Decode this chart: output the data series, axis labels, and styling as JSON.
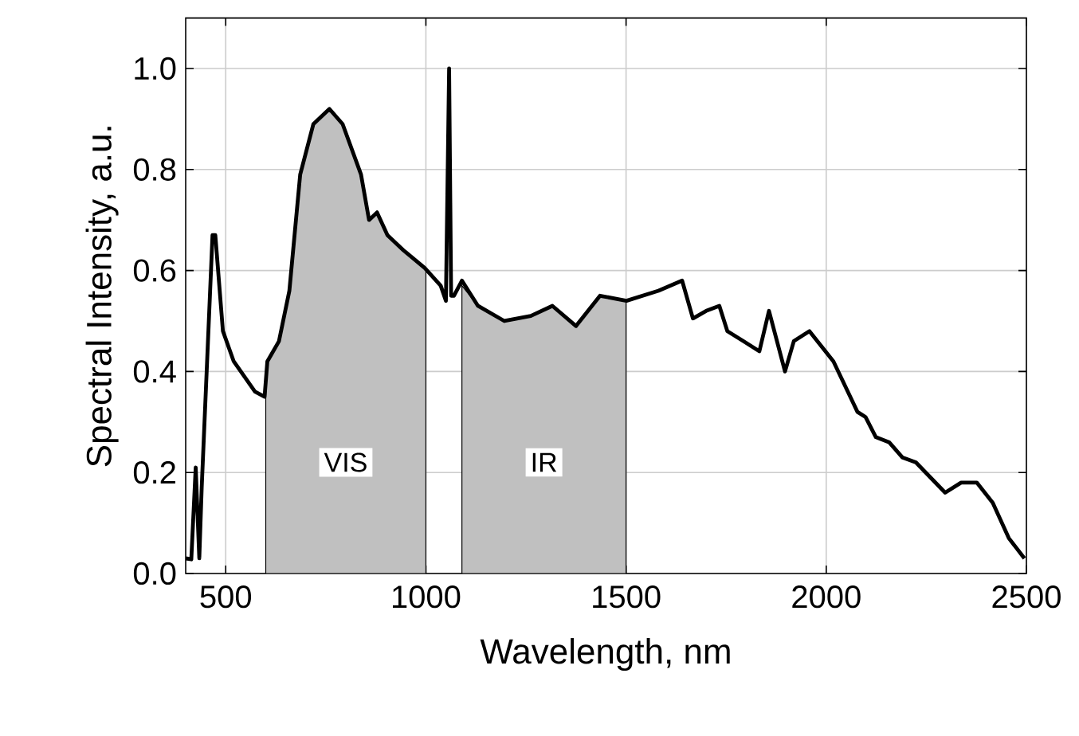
{
  "chart_data": {
    "type": "line",
    "xlabel": "Wavelength, nm",
    "ylabel": "Spectral Intensity, a.u.",
    "xlim": [
      400,
      2500
    ],
    "ylim": [
      0,
      1.1
    ],
    "xticks": [
      500,
      1000,
      1500,
      2000,
      2500
    ],
    "yticks": [
      {
        "value": 0,
        "label": "0.0"
      },
      {
        "value": 0.2,
        "label": "0.2"
      },
      {
        "value": 0.4,
        "label": "0.4"
      },
      {
        "value": 0.6,
        "label": "0.6"
      },
      {
        "value": 0.8,
        "label": "0.8"
      },
      {
        "value": 1.0,
        "label": "1.0"
      }
    ],
    "grid": true,
    "series": [
      {
        "type": "area",
        "name": "VIS",
        "color": "#c0c0c0",
        "x": [
          600,
          604,
          633,
          659,
          686,
          719,
          759,
          792,
          838,
          858,
          878,
          904,
          944,
          997,
          1000
        ],
        "values": [
          0.35,
          0.42,
          0.46,
          0.56,
          0.79,
          0.89,
          0.92,
          0.89,
          0.79,
          0.7,
          0.715,
          0.67,
          0.64,
          0.605,
          0.6
        ]
      },
      {
        "type": "area",
        "name": "IR",
        "color": "#c0c0c0",
        "x": [
          1090,
          1130,
          1196,
          1262,
          1316,
          1375,
          1435,
          1500
        ],
        "values": [
          0.57,
          0.53,
          0.5,
          0.51,
          0.53,
          0.49,
          0.55,
          0.54
        ]
      },
      {
        "color": "#000000",
        "x": [
          400,
          414,
          425,
          434,
          440,
          467,
          474,
          493,
          520,
          573,
          597,
          604,
          633,
          659,
          686,
          719,
          759,
          792,
          838,
          858,
          878,
          904,
          944,
          997,
          1037,
          1050,
          1058,
          1063,
          1070,
          1090,
          1130,
          1196,
          1262,
          1316,
          1375,
          1435,
          1501,
          1581,
          1640,
          1667,
          1700,
          1733,
          1753,
          1793,
          1833,
          1857,
          1897,
          1919,
          1958,
          2018,
          2078,
          2098,
          2124,
          2157,
          2190,
          2224,
          2297,
          2337,
          2376,
          2416,
          2456,
          2495
        ],
        "values": [
          0.03,
          0.028,
          0.21,
          0.03,
          0.17,
          0.67,
          0.67,
          0.48,
          0.42,
          0.36,
          0.35,
          0.42,
          0.46,
          0.56,
          0.79,
          0.89,
          0.92,
          0.89,
          0.79,
          0.7,
          0.715,
          0.67,
          0.64,
          0.605,
          0.57,
          0.54,
          1.0,
          0.55,
          0.55,
          0.58,
          0.53,
          0.5,
          0.51,
          0.53,
          0.49,
          0.55,
          0.54,
          0.56,
          0.58,
          0.505,
          0.52,
          0.53,
          0.48,
          0.46,
          0.44,
          0.52,
          0.4,
          0.46,
          0.48,
          0.42,
          0.32,
          0.31,
          0.27,
          0.26,
          0.23,
          0.22,
          0.16,
          0.18,
          0.18,
          0.14,
          0.07,
          0.03
        ]
      }
    ]
  }
}
